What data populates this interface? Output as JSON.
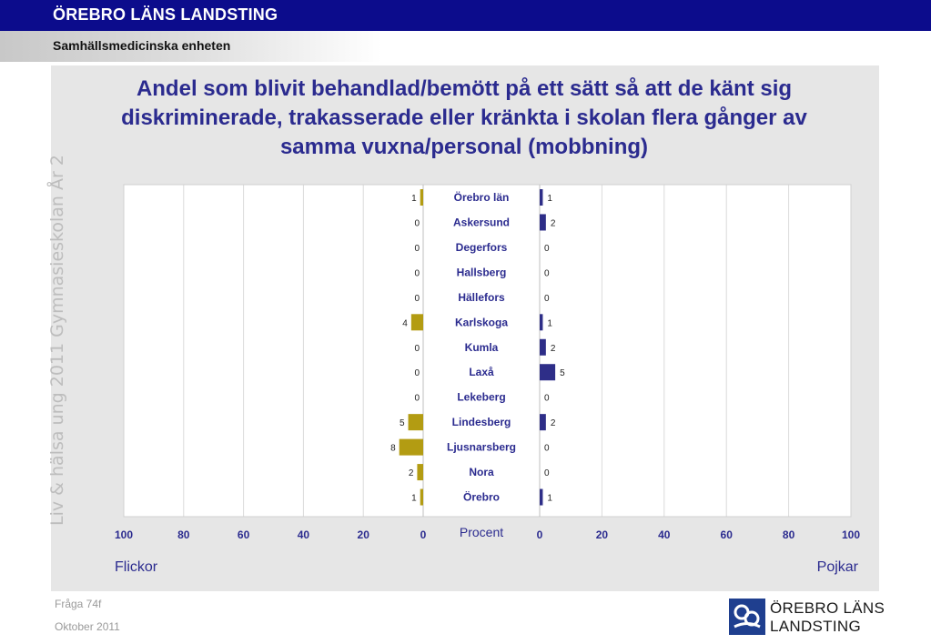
{
  "header": {
    "org_title": "ÖREBRO LÄNS LANDSTING",
    "unit": "Samhällsmedicinska enheten"
  },
  "side_label": "Liv & hälsa ung 2011 Gymnasieskolan År 2",
  "footer": {
    "question": "Fråga 74f",
    "date": "Oktober 2011"
  },
  "logo": {
    "line1": "ÖREBRO LÄNS",
    "line2": "LANDSTING",
    "color": "#1f3f8f"
  },
  "chart_data": {
    "type": "bar",
    "title": "Andel som blivit behandlad/bemött på ett sätt så att de känt sig diskriminerade, trakasserade eller kränkta i skolan flera gånger av samma vuxna/personal (mobbning)",
    "categories": [
      "Örebro län",
      "Askersund",
      "Degerfors",
      "Hallsberg",
      "Hällefors",
      "Karlskoga",
      "Kumla",
      "Laxå",
      "Lekeberg",
      "Lindesberg",
      "Ljusnarsberg",
      "Nora",
      "Örebro"
    ],
    "series": [
      {
        "name": "Flickor",
        "color": "#b39c12",
        "values": [
          1,
          0,
          0,
          0,
          0,
          4,
          0,
          0,
          0,
          5,
          8,
          2,
          1
        ]
      },
      {
        "name": "Pojkar",
        "color": "#2e2e88",
        "values": [
          1,
          2,
          0,
          0,
          0,
          1,
          2,
          5,
          0,
          2,
          0,
          0,
          1
        ]
      }
    ],
    "xlabel": "Procent",
    "xlim": [
      0,
      100
    ],
    "left_ticks": [
      "100",
      "80",
      "60",
      "40",
      "20",
      "0"
    ],
    "right_ticks": [
      "0",
      "20",
      "40",
      "60",
      "80",
      "100"
    ],
    "grid": true
  }
}
